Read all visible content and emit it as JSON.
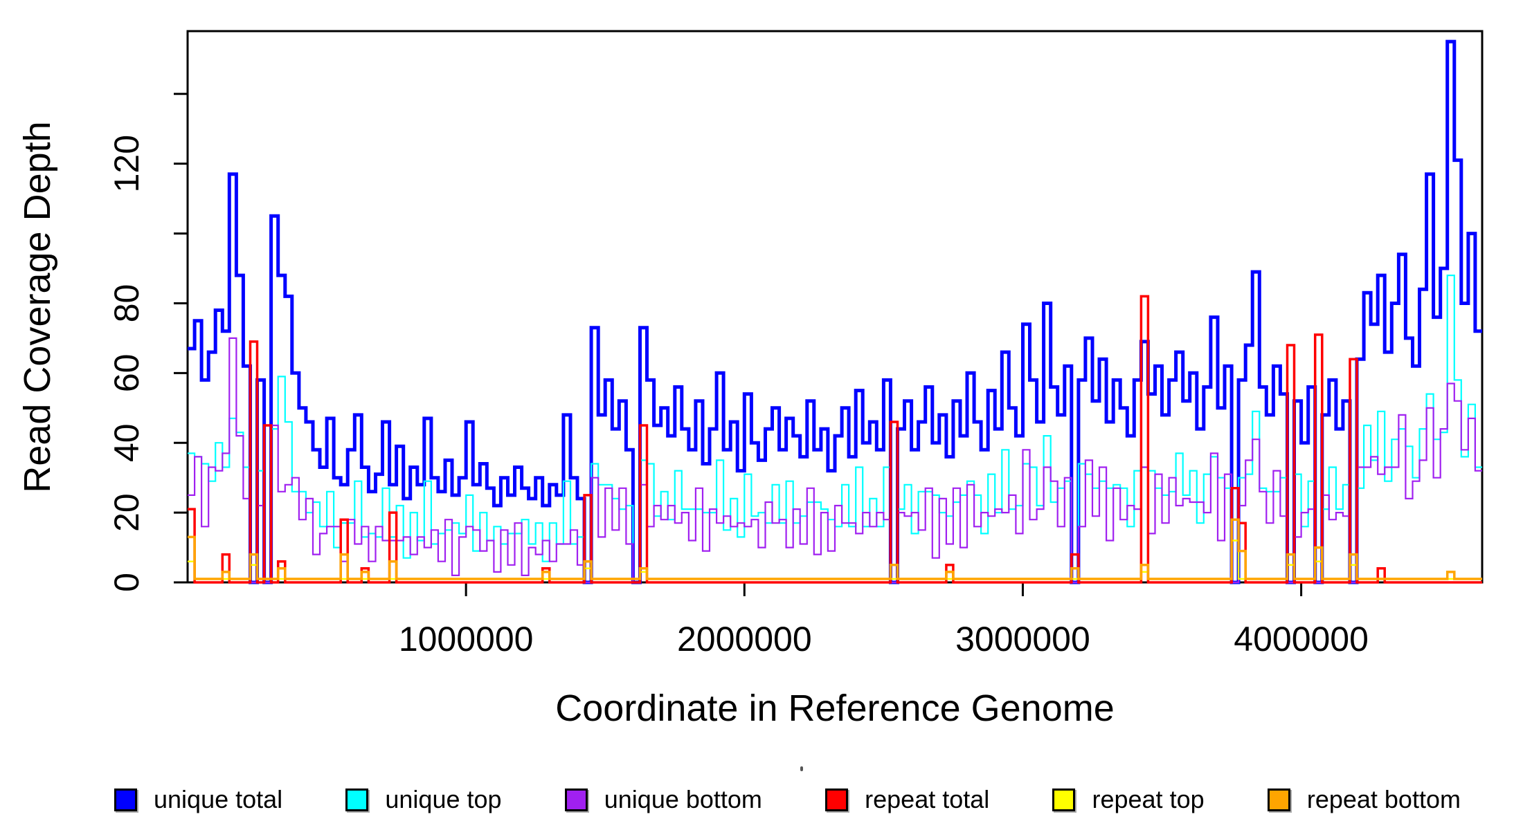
{
  "figure": {
    "background": "#ffffff"
  },
  "chart_data": {
    "type": "step-line-coverage",
    "title": "",
    "xlabel": "Coordinate in Reference Genome",
    "ylabel": "Read Coverage Depth",
    "x_range": [
      0,
      4650000
    ],
    "y_range": [
      0,
      158
    ],
    "grid": false,
    "legend_position": "bottom",
    "bin_size": 25000,
    "n_bins": 186,
    "x_ticks": [
      {
        "value": 1000000,
        "label": "1000000"
      },
      {
        "value": 2000000,
        "label": "2000000"
      },
      {
        "value": 3000000,
        "label": "3000000"
      },
      {
        "value": 4000000,
        "label": "4000000"
      }
    ],
    "y_ticks": [
      {
        "value": 0,
        "label": "0"
      },
      {
        "value": 20,
        "label": "20"
      },
      {
        "value": 40,
        "label": "40"
      },
      {
        "value": 60,
        "label": "60"
      },
      {
        "value": 80,
        "label": "80"
      },
      {
        "value": 100,
        "label": ""
      },
      {
        "value": 120,
        "label": "120"
      },
      {
        "value": 140,
        "label": ""
      }
    ],
    "series": [
      {
        "name": "unique total",
        "color": "#0000FF",
        "line_width": 5,
        "values": [
          67,
          75,
          58,
          66,
          78,
          72,
          117,
          88,
          62,
          0,
          58,
          0,
          105,
          88,
          82,
          60,
          50,
          46,
          38,
          33,
          47,
          30,
          28,
          38,
          48,
          33,
          26,
          31,
          46,
          28,
          39,
          24,
          33,
          28,
          47,
          30,
          26,
          35,
          25,
          30,
          46,
          28,
          34,
          27,
          22,
          30,
          25,
          33,
          27,
          24,
          30,
          22,
          28,
          25,
          48,
          30,
          24,
          0,
          73,
          48,
          58,
          44,
          52,
          38,
          0,
          73,
          58,
          45,
          50,
          42,
          56,
          44,
          38,
          52,
          34,
          44,
          60,
          38,
          46,
          32,
          54,
          40,
          35,
          44,
          50,
          38,
          47,
          42,
          36,
          52,
          38,
          44,
          32,
          42,
          50,
          36,
          55,
          40,
          46,
          38,
          58,
          0,
          44,
          52,
          38,
          46,
          56,
          40,
          48,
          36,
          52,
          42,
          60,
          46,
          38,
          55,
          44,
          66,
          50,
          42,
          74,
          58,
          46,
          80,
          56,
          48,
          62,
          0,
          58,
          70,
          52,
          64,
          46,
          58,
          50,
          42,
          58,
          69,
          54,
          62,
          48,
          58,
          66,
          52,
          60,
          44,
          56,
          76,
          50,
          62,
          0,
          58,
          68,
          89,
          56,
          48,
          62,
          54,
          0,
          52,
          40,
          56,
          0,
          48,
          58,
          44,
          52,
          0,
          64,
          83,
          74,
          88,
          66,
          80,
          94,
          70,
          62,
          84,
          117,
          76,
          90,
          155,
          121,
          80,
          100,
          72
        ]
      },
      {
        "name": "unique top",
        "color": "#00FFFF",
        "line_width": 2.2,
        "values": [
          37,
          36,
          34,
          29,
          40,
          33,
          47,
          43,
          33,
          0,
          32,
          0,
          44,
          59,
          46,
          26,
          26,
          20,
          23,
          16,
          26,
          10,
          17,
          17,
          29,
          13,
          14,
          13,
          27,
          13,
          22,
          7,
          20,
          12,
          29,
          11,
          14,
          15,
          17,
          14,
          25,
          9,
          20,
          12,
          16,
          11,
          14,
          14,
          18,
          11,
          17,
          6,
          17,
          11,
          29,
          11,
          13,
          0,
          34,
          28,
          28,
          24,
          21,
          22,
          0,
          35,
          34,
          19,
          26,
          18,
          32,
          21,
          21,
          21,
          20,
          20,
          35,
          15,
          24,
          13,
          31,
          19,
          20,
          17,
          28,
          17,
          29,
          17,
          19,
          23,
          23,
          21,
          18,
          16,
          28,
          16,
          33,
          16,
          24,
          16,
          33,
          0,
          21,
          28,
          14,
          26,
          26,
          25,
          20,
          19,
          23,
          25,
          29,
          25,
          14,
          31,
          20,
          38,
          21,
          22,
          34,
          33,
          22,
          42,
          23,
          27,
          29,
          0,
          34,
          31,
          27,
          29,
          27,
          28,
          27,
          16,
          32,
          33,
          32,
          27,
          25,
          26,
          37,
          25,
          32,
          17,
          31,
          36,
          30,
          27,
          0,
          30,
          31,
          49,
          27,
          26,
          26,
          30,
          0,
          31,
          16,
          29,
          0,
          21,
          33,
          21,
          28,
          0,
          27,
          45,
          35,
          49,
          29,
          41,
          44,
          39,
          30,
          44,
          54,
          41,
          43,
          88,
          58,
          36,
          51,
          33
        ]
      },
      {
        "name": "unique bottom",
        "color": "#A020F0",
        "line_width": 2.2,
        "values": [
          25,
          36,
          16,
          33,
          32,
          37,
          70,
          42,
          24,
          0,
          22,
          0,
          45,
          26,
          28,
          30,
          18,
          24,
          8,
          14,
          16,
          16,
          6,
          18,
          11,
          16,
          6,
          16,
          12,
          12,
          12,
          13,
          8,
          13,
          10,
          15,
          6,
          18,
          2,
          13,
          16,
          15,
          9,
          12,
          3,
          15,
          5,
          17,
          2,
          10,
          8,
          12,
          6,
          11,
          11,
          15,
          5,
          0,
          30,
          13,
          27,
          15,
          27,
          11,
          0,
          28,
          16,
          22,
          18,
          22,
          17,
          20,
          12,
          27,
          9,
          21,
          17,
          19,
          16,
          17,
          16,
          18,
          10,
          23,
          17,
          18,
          10,
          21,
          11,
          27,
          8,
          20,
          9,
          22,
          17,
          17,
          14,
          20,
          16,
          20,
          18,
          0,
          20,
          19,
          20,
          15,
          27,
          7,
          24,
          11,
          27,
          10,
          28,
          16,
          20,
          19,
          21,
          20,
          25,
          14,
          38,
          18,
          21,
          33,
          29,
          16,
          30,
          0,
          16,
          35,
          19,
          33,
          12,
          27,
          18,
          22,
          21,
          33,
          14,
          31,
          17,
          30,
          22,
          24,
          23,
          23,
          20,
          37,
          12,
          31,
          0,
          22,
          35,
          41,
          26,
          17,
          32,
          19,
          0,
          13,
          20,
          21,
          0,
          25,
          18,
          20,
          19,
          0,
          33,
          33,
          36,
          31,
          33,
          33,
          48,
          24,
          29,
          35,
          50,
          30,
          44,
          57,
          52,
          38,
          47,
          32
        ]
      },
      {
        "name": "repeat total",
        "color": "#FF0000",
        "line_width": 3.5,
        "base": 0,
        "spikes": [
          [
            0,
            21
          ],
          [
            5,
            8
          ],
          [
            9,
            69
          ],
          [
            11,
            45
          ],
          [
            13,
            6
          ],
          [
            22,
            18
          ],
          [
            25,
            4
          ],
          [
            29,
            20
          ],
          [
            51,
            4
          ],
          [
            57,
            25
          ],
          [
            65,
            45
          ],
          [
            101,
            46
          ],
          [
            109,
            5
          ],
          [
            127,
            8
          ],
          [
            137,
            82
          ],
          [
            150,
            27
          ],
          [
            151,
            17
          ],
          [
            158,
            68
          ],
          [
            162,
            71
          ],
          [
            167,
            64
          ],
          [
            171,
            4
          ]
        ]
      },
      {
        "name": "repeat top",
        "color": "#FFFF00",
        "line_width": 2.5,
        "base": 1,
        "spikes": [
          [
            0,
            6
          ],
          [
            9,
            5
          ],
          [
            57,
            4
          ],
          [
            65,
            3
          ],
          [
            137,
            3
          ],
          [
            150,
            12
          ],
          [
            158,
            5
          ],
          [
            162,
            6
          ],
          [
            167,
            5
          ]
        ]
      },
      {
        "name": "repeat bottom",
        "color": "#FFA500",
        "line_width": 3.5,
        "base": 1,
        "spikes": [
          [
            0,
            13
          ],
          [
            5,
            3
          ],
          [
            9,
            8
          ],
          [
            13,
            4
          ],
          [
            22,
            8
          ],
          [
            25,
            3
          ],
          [
            29,
            6
          ],
          [
            51,
            3
          ],
          [
            57,
            6
          ],
          [
            65,
            4
          ],
          [
            101,
            5
          ],
          [
            109,
            3
          ],
          [
            127,
            4
          ],
          [
            137,
            5
          ],
          [
            150,
            18
          ],
          [
            151,
            9
          ],
          [
            158,
            8
          ],
          [
            162,
            10
          ],
          [
            167,
            8
          ],
          [
            181,
            3
          ]
        ]
      }
    ]
  }
}
